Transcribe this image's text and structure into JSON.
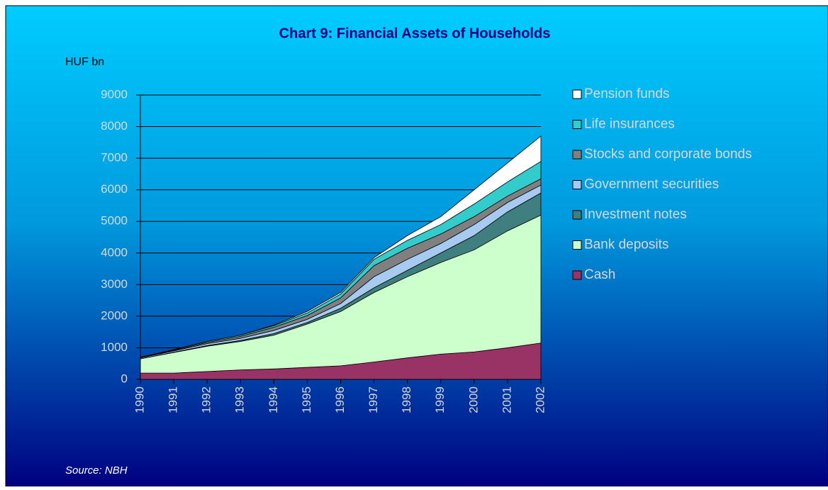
{
  "chart_data": {
    "type": "stacked_area",
    "title": "Chart 9: Financial Assets of Households",
    "y_label": "HUF bn",
    "source": "Source: NBH",
    "categories": [
      "1990",
      "1991",
      "1992",
      "1993",
      "1994",
      "1995",
      "1996",
      "1997",
      "1998",
      "1999",
      "2000",
      "2001",
      "2002"
    ],
    "series": [
      {
        "name": "Cash",
        "color": "#993366",
        "values": [
          200,
          200,
          250,
          300,
          330,
          380,
          430,
          550,
          680,
          800,
          870,
          1000,
          1150
        ]
      },
      {
        "name": "Bank deposits",
        "color": "#ccffcc",
        "values": [
          450,
          650,
          800,
          900,
          1070,
          1370,
          1720,
          2200,
          2570,
          2900,
          3230,
          3700,
          4050
        ]
      },
      {
        "name": "Investment notes",
        "color": "#3f7f7f",
        "values": [
          0,
          10,
          20,
          30,
          50,
          50,
          100,
          150,
          200,
          300,
          450,
          600,
          700
        ]
      },
      {
        "name": "Government securities",
        "color": "#a6caf0",
        "values": [
          30,
          40,
          60,
          70,
          100,
          100,
          150,
          350,
          350,
          300,
          350,
          300,
          250
        ]
      },
      {
        "name": "Stocks and corporate bonds",
        "color": "#808080",
        "values": [
          10,
          20,
          40,
          60,
          100,
          120,
          180,
          350,
          350,
          300,
          250,
          200,
          200
        ]
      },
      {
        "name": "Life insurances",
        "color": "#33cccc",
        "values": [
          10,
          20,
          30,
          40,
          50,
          80,
          120,
          200,
          250,
          300,
          400,
          450,
          550
        ]
      },
      {
        "name": "Pension funds",
        "color": "#ffffff",
        "values": [
          0,
          0,
          0,
          0,
          20,
          50,
          50,
          50,
          150,
          250,
          450,
          600,
          800
        ]
      }
    ],
    "ylim": [
      0,
      9000
    ],
    "yticks": [
      0,
      1000,
      2000,
      3000,
      4000,
      5000,
      6000,
      7000,
      8000,
      9000
    ],
    "grid": true
  }
}
